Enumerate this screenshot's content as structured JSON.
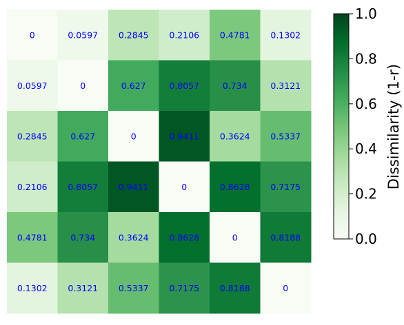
{
  "chart_data": {
    "type": "heatmap",
    "title": "",
    "xlabel": "",
    "ylabel": "",
    "matrix": [
      [
        0.0,
        0.0597,
        0.2845,
        0.2106,
        0.4781,
        0.1302
      ],
      [
        0.0597,
        0.0,
        0.627,
        0.8057,
        0.734,
        0.3121
      ],
      [
        0.2845,
        0.627,
        0.0,
        0.9411,
        0.3624,
        0.5337
      ],
      [
        0.2106,
        0.8057,
        0.9411,
        0.0,
        0.8628,
        0.7175
      ],
      [
        0.4781,
        0.734,
        0.3624,
        0.8628,
        0.0,
        0.8188
      ],
      [
        0.1302,
        0.3121,
        0.5337,
        0.7175,
        0.8188,
        0.0
      ]
    ],
    "value_range": [
      0.0,
      1.0
    ],
    "colormap": "Greens",
    "cell_text_color": "#0000ff",
    "grid": false,
    "colorbar": {
      "label": "Dissimilarity (1-r)",
      "ticks": [
        "0.0",
        "0.2",
        "0.4",
        "0.6",
        "0.8",
        "1.0"
      ],
      "placement": "right"
    }
  }
}
